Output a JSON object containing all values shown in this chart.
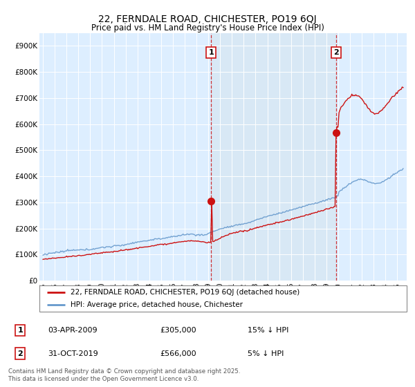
{
  "title": "22, FERNDALE ROAD, CHICHESTER, PO19 6QJ",
  "subtitle": "Price paid vs. HM Land Registry's House Price Index (HPI)",
  "ylabel_ticks": [
    "£0",
    "£100K",
    "£200K",
    "£300K",
    "£400K",
    "£500K",
    "£600K",
    "£700K",
    "£800K",
    "£900K"
  ],
  "ytick_values": [
    0,
    100000,
    200000,
    300000,
    400000,
    500000,
    600000,
    700000,
    800000,
    900000
  ],
  "ylim": [
    0,
    950000
  ],
  "hpi_color": "#6699cc",
  "price_color": "#cc1111",
  "vline_color": "#cc1111",
  "shade_color": "#d8e8f5",
  "sale1_x": 2009.25,
  "sale2_x": 2019.83,
  "sale1_y": 305000,
  "sale2_y": 566000,
  "sale1_date": "03-APR-2009",
  "sale1_price": "£305,000",
  "sale1_label": "15% ↓ HPI",
  "sale2_date": "31-OCT-2019",
  "sale2_price": "£566,000",
  "sale2_label": "5% ↓ HPI",
  "legend_line1": "22, FERNDALE ROAD, CHICHESTER, PO19 6QJ (detached house)",
  "legend_line2": "HPI: Average price, detached house, Chichester",
  "footnote": "Contains HM Land Registry data © Crown copyright and database right 2025.\nThis data is licensed under the Open Government Licence v3.0.",
  "background_color": "#ffffff",
  "plot_bg_color": "#ddeeff",
  "xlim_left": 1994.7,
  "xlim_right": 2025.8,
  "num_box_color": "#cc1111"
}
